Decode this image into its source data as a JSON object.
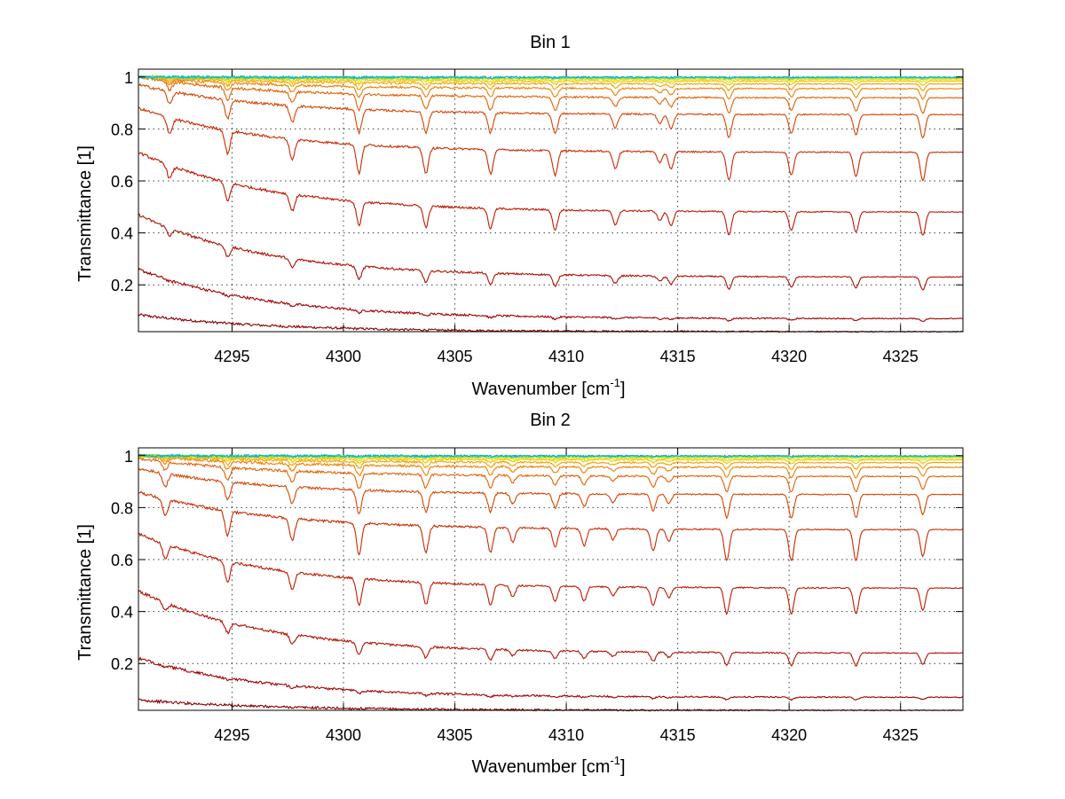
{
  "chart_data": [
    {
      "type": "line",
      "title": "Bin 1",
      "xlabel": "Wavenumber [cm",
      "xlabel_sup": "-1",
      "xlabel_tail": "]",
      "ylabel": "Transmittance [1]",
      "xlim": [
        4290.8,
        4327.8
      ],
      "ylim": [
        0.02,
        1.03
      ],
      "xticks": [
        4295,
        4300,
        4305,
        4310,
        4315,
        4320,
        4325
      ],
      "yticks": [
        0.2,
        0.4,
        0.6,
        0.8,
        1
      ],
      "grid": true,
      "absorption_lines": [
        {
          "x": 4292.2,
          "depth": 0.55
        },
        {
          "x": 4294.8,
          "depth": 0.8
        },
        {
          "x": 4297.7,
          "depth": 0.7
        },
        {
          "x": 4300.7,
          "depth": 1.0
        },
        {
          "x": 4303.7,
          "depth": 0.9
        },
        {
          "x": 4306.6,
          "depth": 0.85
        },
        {
          "x": 4309.5,
          "depth": 0.85
        },
        {
          "x": 4312.2,
          "depth": 0.6
        },
        {
          "x": 4314.2,
          "depth": 0.4
        },
        {
          "x": 4314.7,
          "depth": 0.6
        },
        {
          "x": 4317.3,
          "depth": 1.0
        },
        {
          "x": 4320.1,
          "depth": 0.8
        },
        {
          "x": 4323.0,
          "depth": 0.85
        },
        {
          "x": 4326.0,
          "depth": 1.0
        }
      ],
      "series": [
        {
          "baseline_start": 0.085,
          "baseline_end": 0.02,
          "line_depth": 0.0,
          "color": "#8b0000"
        },
        {
          "baseline_start": 0.26,
          "baseline_end": 0.07,
          "line_depth": 0.01,
          "color": "#a00000"
        },
        {
          "baseline_start": 0.47,
          "baseline_end": 0.23,
          "line_depth": 0.05,
          "color": "#b01000"
        },
        {
          "baseline_start": 0.71,
          "baseline_end": 0.48,
          "line_depth": 0.09,
          "color": "#c01800"
        },
        {
          "baseline_start": 0.88,
          "baseline_end": 0.71,
          "line_depth": 0.11,
          "color": "#cc2a00"
        },
        {
          "baseline_start": 0.97,
          "baseline_end": 0.855,
          "line_depth": 0.09,
          "color": "#d84400"
        },
        {
          "baseline_start": 1.0,
          "baseline_end": 0.92,
          "line_depth": 0.06,
          "color": "#e46000"
        },
        {
          "baseline_start": 1.0,
          "baseline_end": 0.955,
          "line_depth": 0.04,
          "color": "#ee8000"
        },
        {
          "baseline_start": 1.0,
          "baseline_end": 0.973,
          "line_depth": 0.025,
          "color": "#f4a000"
        },
        {
          "baseline_start": 1.0,
          "baseline_end": 0.984,
          "line_depth": 0.015,
          "color": "#f6c000"
        },
        {
          "baseline_start": 1.0,
          "baseline_end": 0.99,
          "line_depth": 0.009,
          "color": "#e8e000"
        },
        {
          "baseline_start": 1.0,
          "baseline_end": 0.995,
          "line_depth": 0.005,
          "color": "#a8e000"
        },
        {
          "baseline_start": 1.0,
          "baseline_end": 0.998,
          "line_depth": 0.003,
          "color": "#40d8a0"
        },
        {
          "baseline_start": 1.0,
          "baseline_end": 0.999,
          "line_depth": 0.002,
          "color": "#00b0e0"
        }
      ]
    },
    {
      "type": "line",
      "title": "Bin 2",
      "xlabel": "Wavenumber [cm",
      "xlabel_sup": "-1",
      "xlabel_tail": "]",
      "ylabel": "Transmittance [1]",
      "xlim": [
        4290.8,
        4327.8
      ],
      "ylim": [
        0.02,
        1.03
      ],
      "xticks": [
        4295,
        4300,
        4305,
        4310,
        4315,
        4320,
        4325
      ],
      "yticks": [
        0.2,
        0.4,
        0.6,
        0.8,
        1
      ],
      "grid": true,
      "absorption_lines": [
        {
          "x": 4292.0,
          "depth": 0.55
        },
        {
          "x": 4294.8,
          "depth": 0.8
        },
        {
          "x": 4297.7,
          "depth": 0.7
        },
        {
          "x": 4300.7,
          "depth": 1.0
        },
        {
          "x": 4303.7,
          "depth": 0.85
        },
        {
          "x": 4306.6,
          "depth": 0.8
        },
        {
          "x": 4307.6,
          "depth": 0.45
        },
        {
          "x": 4309.5,
          "depth": 0.6
        },
        {
          "x": 4310.8,
          "depth": 0.55
        },
        {
          "x": 4312.1,
          "depth": 0.35
        },
        {
          "x": 4313.9,
          "depth": 0.7
        },
        {
          "x": 4314.6,
          "depth": 0.4
        },
        {
          "x": 4317.2,
          "depth": 1.0
        },
        {
          "x": 4320.1,
          "depth": 1.0
        },
        {
          "x": 4323.0,
          "depth": 1.0
        },
        {
          "x": 4326.0,
          "depth": 0.85
        }
      ],
      "series": [
        {
          "baseline_start": 0.06,
          "baseline_end": 0.02,
          "line_depth": 0.0,
          "color": "#8b0000"
        },
        {
          "baseline_start": 0.22,
          "baseline_end": 0.07,
          "line_depth": 0.01,
          "color": "#a00000"
        },
        {
          "baseline_start": 0.48,
          "baseline_end": 0.24,
          "line_depth": 0.05,
          "color": "#b01000"
        },
        {
          "baseline_start": 0.7,
          "baseline_end": 0.49,
          "line_depth": 0.1,
          "color": "#c01800"
        },
        {
          "baseline_start": 0.86,
          "baseline_end": 0.715,
          "line_depth": 0.12,
          "color": "#cc2a00"
        },
        {
          "baseline_start": 0.95,
          "baseline_end": 0.85,
          "line_depth": 0.09,
          "color": "#d84400"
        },
        {
          "baseline_start": 0.99,
          "baseline_end": 0.92,
          "line_depth": 0.06,
          "color": "#e46000"
        },
        {
          "baseline_start": 1.0,
          "baseline_end": 0.955,
          "line_depth": 0.04,
          "color": "#ee8000"
        },
        {
          "baseline_start": 1.0,
          "baseline_end": 0.973,
          "line_depth": 0.025,
          "color": "#f4a000"
        },
        {
          "baseline_start": 1.0,
          "baseline_end": 0.984,
          "line_depth": 0.015,
          "color": "#f6c000"
        },
        {
          "baseline_start": 1.0,
          "baseline_end": 0.99,
          "line_depth": 0.009,
          "color": "#e8e000"
        },
        {
          "baseline_start": 1.0,
          "baseline_end": 0.995,
          "line_depth": 0.005,
          "color": "#a8e000"
        },
        {
          "baseline_start": 1.0,
          "baseline_end": 0.998,
          "line_depth": 0.003,
          "color": "#40d8a0"
        },
        {
          "baseline_start": 1.0,
          "baseline_end": 0.999,
          "line_depth": 0.002,
          "color": "#00b0e0"
        }
      ]
    }
  ]
}
